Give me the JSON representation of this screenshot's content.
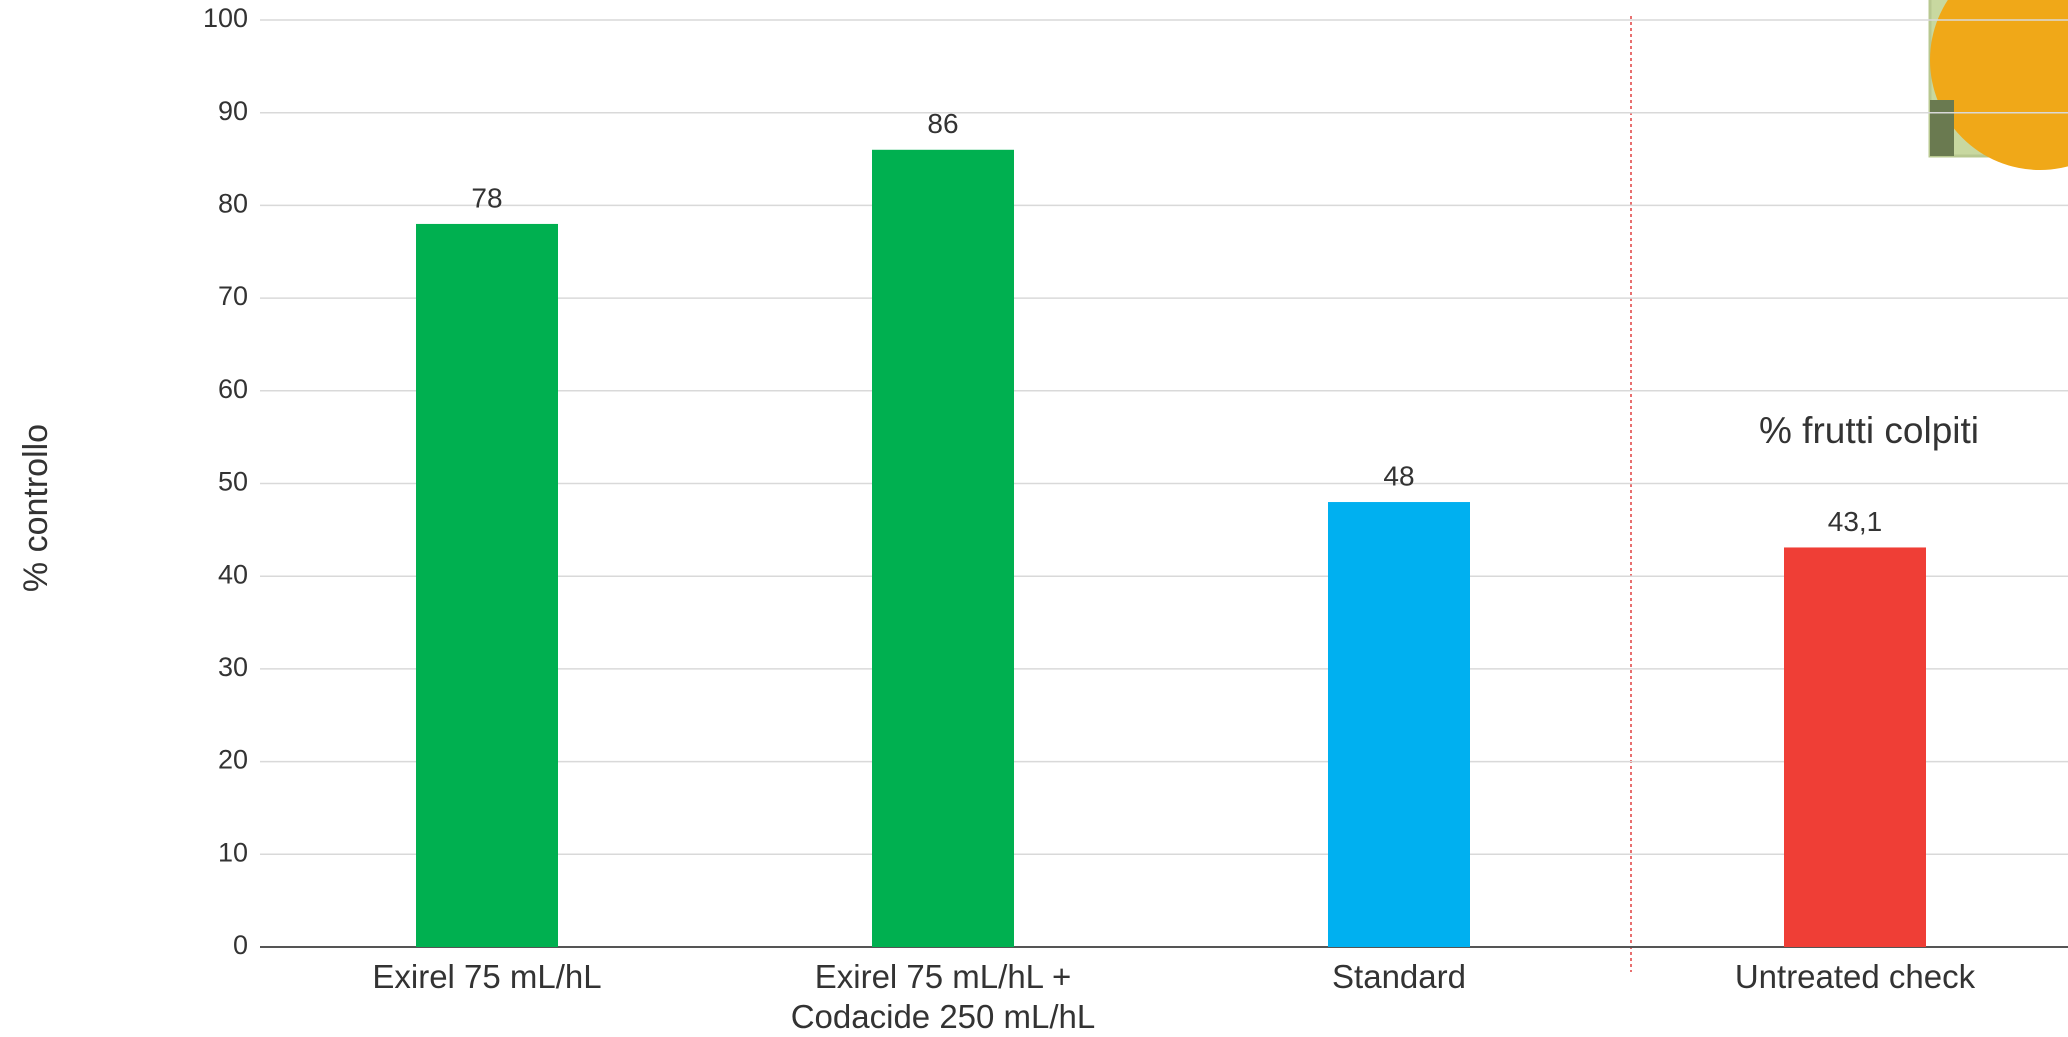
{
  "chart_data": {
    "type": "bar",
    "categories": [
      "Exirel 75 mL/hL",
      "Exirel 75 mL/hL +\nCodacide 250 mL/hL",
      "Standard",
      "Untreated check"
    ],
    "values": [
      78,
      86,
      48,
      43.1
    ],
    "value_labels": [
      "78",
      "86",
      "48",
      "43,1"
    ],
    "colors": [
      "#00b050",
      "#00b050",
      "#00b0f0",
      "#ef3e36"
    ],
    "y_axis_label": "% controllo",
    "annotation": "% frutti colpiti",
    "ylim": [
      0,
      100
    ],
    "yticks": [
      0,
      10,
      20,
      30,
      40,
      50,
      60,
      70,
      80,
      90,
      100
    ],
    "grid": true
  }
}
